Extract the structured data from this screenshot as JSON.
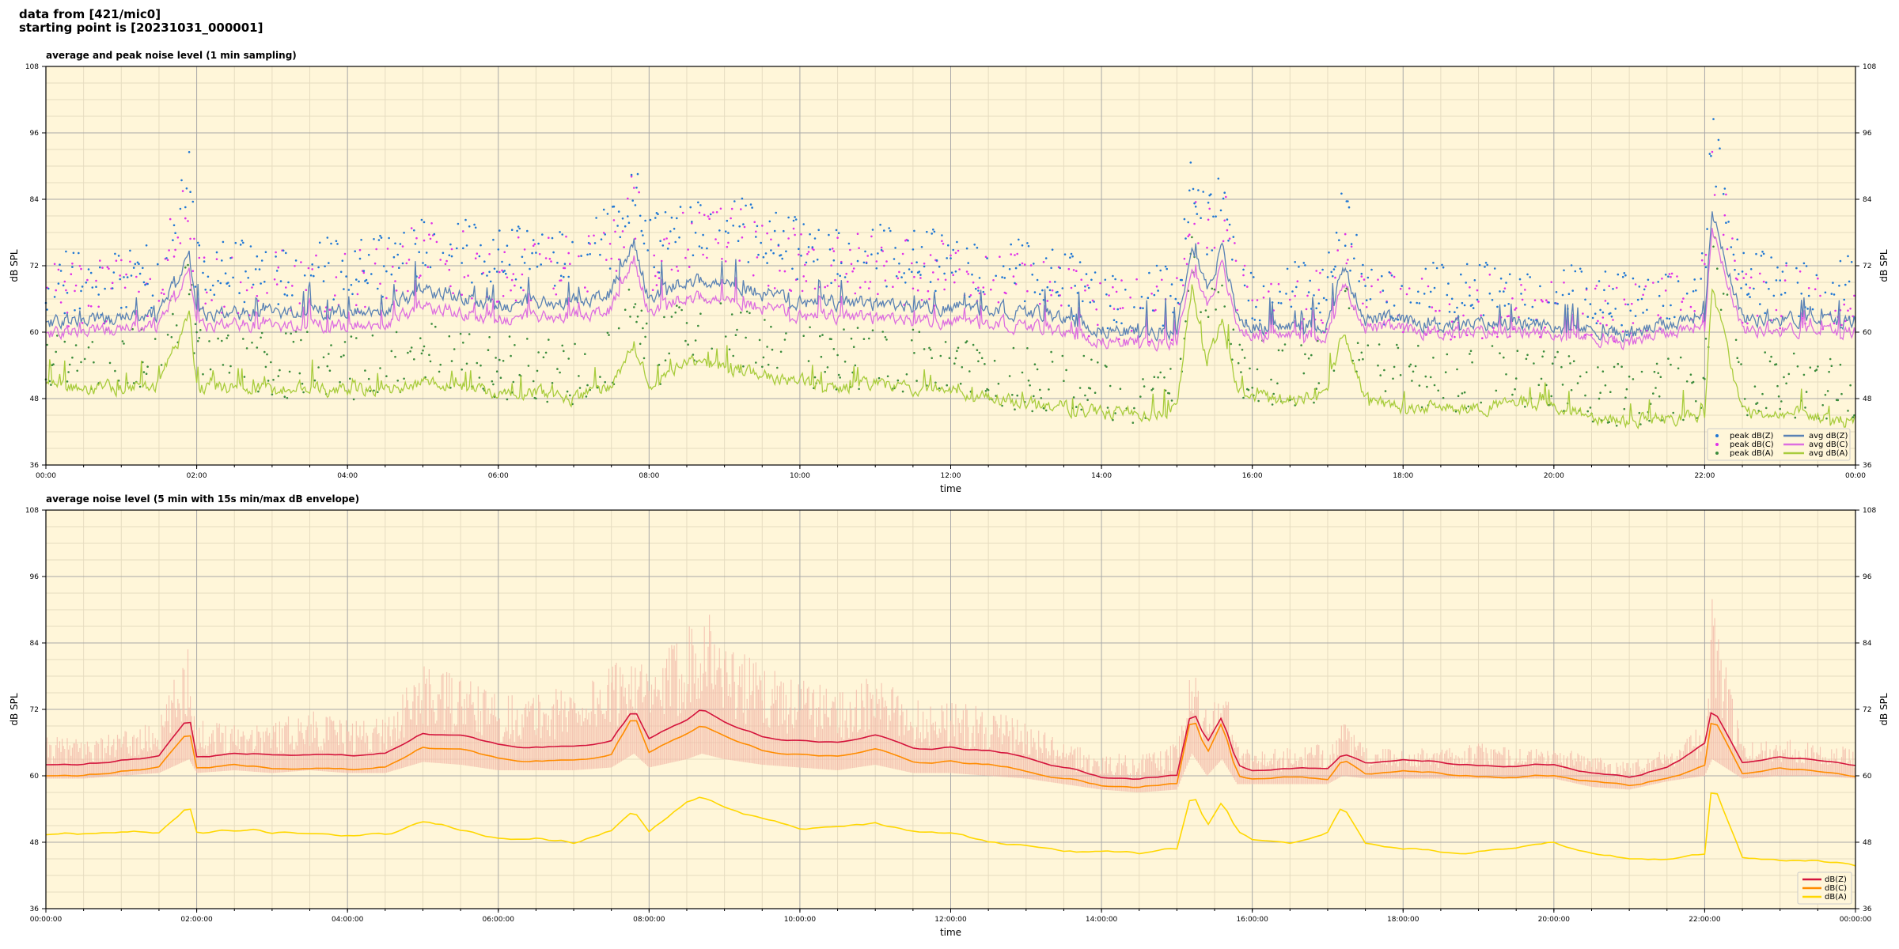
{
  "header": {
    "line1": "data from [421/mic0]",
    "line2": "starting point is [20231031_000001]"
  },
  "colors": {
    "plot_bg": "#fff6d9",
    "grid_major": "#a8a8a8",
    "grid_minor": "#e6dcc0",
    "peak_z": "#1f77d4",
    "peak_c": "#e030e8",
    "peak_a": "#3c8c3c",
    "avg_z": "#5a82b4",
    "avg_c": "#dd6ee0",
    "avg_a": "#a8cc3c",
    "db_z": "#d4143c",
    "db_c": "#ff8c00",
    "db_a": "#ffd700",
    "envelope": "#f2b8a8"
  },
  "chart_data": [
    {
      "type": "line",
      "title": "average and peak noise level (1 min sampling)",
      "xlabel": "time",
      "ylabel": "dB SPL",
      "ylim": [
        36,
        108
      ],
      "yticks": [
        36,
        48,
        60,
        72,
        84,
        96,
        108
      ],
      "xlim_hours": [
        0,
        24
      ],
      "xtick_labels": [
        "00:00",
        "02:00",
        "04:00",
        "06:00",
        "08:00",
        "10:00",
        "12:00",
        "14:00",
        "16:00",
        "18:00",
        "20:00",
        "22:00",
        "00:00"
      ],
      "grid": true,
      "legend_position": "bottom-right",
      "legend": [
        "peak dB(Z)",
        "peak dB(C)",
        "peak dB(A)",
        "avg dB(Z)",
        "avg dB(C)",
        "avg dB(A)"
      ],
      "x_hours": [
        0,
        0.5,
        1,
        1.5,
        1.9,
        2,
        2.5,
        3,
        3.5,
        4,
        4.5,
        5,
        5.5,
        6,
        6.5,
        7,
        7.5,
        7.8,
        8,
        8.5,
        9,
        9.5,
        10,
        10.5,
        11,
        11.5,
        12,
        12.5,
        13,
        13.5,
        14,
        14.5,
        15,
        15.2,
        15.4,
        15.6,
        15.8,
        16,
        16.5,
        17,
        17.2,
        17.5,
        18,
        18.5,
        19,
        19.5,
        20,
        20.5,
        21,
        21.5,
        22,
        22.1,
        22.5,
        23,
        23.5,
        24
      ],
      "series": [
        {
          "name": "avg dB(Z)",
          "values": [
            62,
            62,
            62.5,
            63.5,
            74,
            63,
            63.5,
            63.5,
            64,
            63.5,
            64,
            67.5,
            66.5,
            65,
            65,
            65.5,
            67,
            76,
            66,
            69.5,
            69,
            67,
            65.5,
            65.5,
            65,
            64.5,
            64.5,
            64,
            63.5,
            62.5,
            60.5,
            60,
            60.5,
            77,
            68,
            75,
            63,
            61,
            61,
            61.5,
            72,
            62.5,
            62,
            61.5,
            61.5,
            61.5,
            61,
            60.5,
            59.5,
            61.5,
            63.5,
            82,
            62.5,
            62.5,
            62.5,
            62
          ]
        },
        {
          "name": "avg dB(C)",
          "values": [
            60,
            60,
            60.5,
            61.5,
            71,
            61,
            61.5,
            61,
            61.5,
            61,
            61.5,
            64.5,
            63.5,
            62.5,
            62.5,
            63,
            64,
            73,
            63.5,
            66.5,
            66,
            64.5,
            63,
            63,
            62.5,
            62,
            62,
            61.5,
            61,
            60,
            58.5,
            58,
            58.5,
            73,
            65,
            72,
            61,
            59.5,
            59.5,
            59.5,
            69,
            61,
            60.5,
            60,
            60,
            60,
            59.5,
            59,
            58,
            60,
            61.5,
            79,
            60.5,
            60.5,
            60.5,
            60
          ]
        },
        {
          "name": "avg dB(A)",
          "values": [
            50,
            50,
            50,
            50.5,
            63,
            50,
            50,
            49.5,
            50,
            49.5,
            49.5,
            51,
            50.5,
            49,
            49,
            48,
            50,
            58,
            50,
            55,
            54,
            52,
            51,
            50,
            50.5,
            50,
            49.5,
            48,
            47,
            46.5,
            45.5,
            45,
            46,
            68,
            55,
            62,
            50,
            48.5,
            48,
            49.5,
            60,
            48,
            46.5,
            46.5,
            46.5,
            47,
            46.5,
            45,
            44,
            44.5,
            45,
            68,
            45.5,
            45.5,
            44.5,
            44
          ]
        },
        {
          "name": "peak dB(Z)",
          "values": [
            68,
            68,
            69,
            70,
            86,
            70,
            70,
            70,
            71,
            70,
            71,
            76,
            74,
            72,
            73,
            74,
            76,
            85,
            74,
            79,
            79,
            76,
            74,
            74,
            73,
            72,
            72,
            71,
            70,
            68,
            66,
            65,
            66,
            86,
            77,
            84,
            69,
            66,
            66,
            67,
            80,
            67,
            66,
            66,
            66,
            66,
            66,
            65,
            64,
            66,
            69,
            94,
            68,
            68,
            68,
            67
          ]
        },
        {
          "name": "peak dB(C)",
          "values": [
            66,
            66,
            67,
            68,
            84,
            68,
            68,
            68,
            69,
            68,
            69,
            74,
            72,
            70,
            71,
            72,
            74,
            83,
            72,
            77,
            77,
            74,
            72,
            72,
            71,
            70,
            70,
            69,
            68,
            66,
            64,
            63,
            64,
            84,
            75,
            82,
            67,
            64,
            64,
            65,
            78,
            65,
            64,
            64,
            64,
            64,
            64,
            63,
            62,
            64,
            67,
            92,
            66,
            66,
            66,
            65
          ]
        },
        {
          "name": "peak dB(A)",
          "values": [
            54,
            54,
            54,
            55,
            68,
            54,
            54,
            53,
            54,
            53,
            53,
            56,
            55,
            53,
            53,
            52,
            55,
            63,
            54,
            60,
            59,
            57,
            55,
            54,
            55,
            54,
            53,
            52,
            51,
            50,
            49,
            49,
            50,
            74,
            60,
            68,
            54,
            52,
            52,
            53,
            66,
            52,
            51,
            51,
            51,
            51,
            51,
            49,
            48,
            49,
            50,
            74,
            50,
            50,
            49,
            48
          ]
        }
      ]
    },
    {
      "type": "line",
      "title": "average noise level (5 min with 15s min/max dB envelope)",
      "xlabel": "time",
      "ylabel": "dB SPL",
      "ylim": [
        36,
        108
      ],
      "yticks": [
        36,
        48,
        60,
        72,
        84,
        96,
        108
      ],
      "xlim_hours": [
        0,
        24
      ],
      "xtick_labels": [
        "00:00:00",
        "02:00:00",
        "04:00:00",
        "06:00:00",
        "08:00:00",
        "10:00:00",
        "12:00:00",
        "14:00:00",
        "16:00:00",
        "18:00:00",
        "20:00:00",
        "22:00:00",
        "00:00:00"
      ],
      "grid": true,
      "legend_position": "bottom-right",
      "legend": [
        "dB(Z)",
        "dB(C)",
        "dB(A)"
      ],
      "x_hours": [
        0,
        0.5,
        1,
        1.5,
        1.9,
        2,
        2.5,
        3,
        3.5,
        4,
        4.5,
        5,
        5.5,
        6,
        6.5,
        7,
        7.5,
        7.8,
        8,
        8.5,
        8.7,
        9,
        9.5,
        10,
        10.5,
        11,
        11.5,
        12,
        12.5,
        13,
        13.5,
        14,
        14.5,
        15,
        15.2,
        15.4,
        15.6,
        15.8,
        16,
        16.5,
        17,
        17.2,
        17.5,
        18,
        18.5,
        19,
        19.5,
        20,
        20.5,
        21,
        21.5,
        22,
        22.1,
        22.5,
        23,
        23.5,
        24
      ],
      "series": [
        {
          "name": "dB(Z)",
          "values": [
            62,
            62,
            62.5,
            63.5,
            71,
            63.5,
            64,
            64,
            64.5,
            64,
            64,
            67.5,
            67,
            65.5,
            65.5,
            65.5,
            66.5,
            72,
            66.5,
            70,
            72,
            70,
            67.5,
            66.5,
            66,
            67,
            65,
            65,
            64.5,
            63.5,
            62,
            60,
            59.5,
            60,
            72,
            66,
            71,
            62,
            61,
            61,
            61.5,
            64,
            62.5,
            62.5,
            62.5,
            62,
            62,
            62,
            60.5,
            60,
            62,
            66,
            72.5,
            62.5,
            63.5,
            63,
            62
          ]
        },
        {
          "name": "dB(C)",
          "values": [
            60,
            60,
            60.5,
            61.5,
            68.5,
            61.5,
            62,
            61.5,
            62,
            61.5,
            61.5,
            65,
            64.5,
            63,
            63,
            63,
            64,
            71,
            64,
            67.5,
            69,
            67.5,
            65,
            64,
            63.5,
            64.5,
            62.5,
            62.5,
            62,
            61,
            60,
            58.5,
            58,
            58.5,
            71,
            64,
            70,
            60,
            59.5,
            59.5,
            59.5,
            63,
            60.5,
            60.5,
            60.5,
            60,
            60,
            60,
            59,
            58.5,
            60,
            62,
            71,
            60.5,
            61.5,
            61,
            60
          ]
        },
        {
          "name": "dB(A)",
          "values": [
            49.5,
            49.5,
            50,
            50,
            55,
            50,
            50,
            49.5,
            50,
            49.5,
            49.5,
            51.5,
            50.5,
            49,
            49,
            48,
            50.5,
            54,
            50,
            55,
            56,
            54.5,
            52.5,
            51,
            50.5,
            51.5,
            50,
            49.5,
            48,
            47.5,
            46.5,
            46,
            45.5,
            46.5,
            57,
            51,
            56,
            50.5,
            48.5,
            48,
            50,
            55,
            48,
            47,
            46.5,
            46.5,
            47,
            48,
            46.5,
            45,
            45,
            45.5,
            59,
            45.5,
            45,
            45,
            44
          ]
        },
        {
          "name": "envelope max",
          "values": [
            67,
            67,
            68,
            70,
            85,
            70,
            70,
            70,
            72,
            70,
            71,
            80,
            78,
            75,
            75,
            77,
            80,
            84,
            78,
            88,
            93,
            85,
            80,
            78,
            76,
            78,
            74,
            74,
            72,
            70,
            66,
            64,
            64,
            66,
            80,
            72,
            80,
            66,
            65,
            65,
            66,
            70,
            65,
            65,
            65,
            66,
            65,
            65,
            64,
            63,
            65,
            70,
            92,
            66,
            67,
            66,
            65
          ]
        },
        {
          "name": "envelope min",
          "values": [
            59.5,
            59.5,
            60,
            60.5,
            63,
            60.5,
            61,
            60.5,
            61,
            60.5,
            60.5,
            62.5,
            62,
            61,
            61,
            61,
            61.5,
            64,
            61.5,
            63,
            64,
            63,
            62,
            61.5,
            61,
            62,
            60.5,
            60.5,
            60,
            59.5,
            58.5,
            57.5,
            57,
            57.5,
            64,
            60,
            63,
            58.5,
            58.5,
            58.5,
            58.5,
            60,
            59.5,
            59.5,
            59.5,
            59.5,
            59.5,
            59.5,
            58,
            57.5,
            59,
            60,
            63,
            59.5,
            60,
            60,
            59.5
          ]
        }
      ]
    }
  ]
}
